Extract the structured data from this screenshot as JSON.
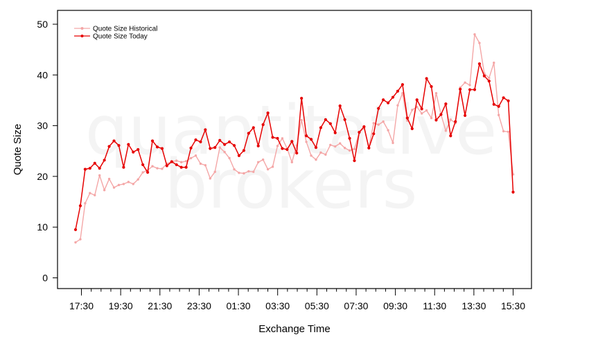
{
  "chart_data": {
    "type": "line",
    "title": "",
    "xlabel": "Exchange Time",
    "ylabel": "Quote Size",
    "ylim": [
      0,
      50
    ],
    "yticks": [
      0,
      10,
      20,
      30,
      40,
      50
    ],
    "xtick_labels": [
      "17:30",
      "19:30",
      "21:30",
      "23:30",
      "01:30",
      "03:30",
      "05:30",
      "07:30",
      "09:30",
      "11:30",
      "13:30",
      "15:30"
    ],
    "grid": false,
    "legend": "top-left",
    "watermark": [
      "quantitative",
      "brokers"
    ],
    "series": [
      {
        "name": "Quote Size Historical",
        "color": "#f4a6a6",
        "values": [
          7.0,
          7.6,
          14.7,
          16.7,
          16.3,
          20.2,
          17.3,
          19.5,
          17.8,
          18.3,
          18.5,
          18.9,
          18.5,
          19.4,
          20.8,
          21.2,
          22.0,
          21.6,
          21.5,
          22.5,
          22.9,
          23.1,
          22.8,
          23.0,
          23.6,
          24.1,
          22.5,
          22.2,
          19.6,
          20.9,
          25.7,
          24.8,
          23.6,
          21.4,
          20.7,
          20.6,
          21.0,
          20.9,
          22.8,
          23.3,
          21.4,
          21.9,
          26.0,
          27.5,
          25.5,
          22.8,
          26.1,
          31.1,
          26.8,
          24.1,
          23.3,
          24.7,
          24.3,
          26.2,
          25.9,
          26.5,
          25.6,
          25.1,
          25.4,
          28.7,
          29.5,
          25.7,
          30.5,
          30.2,
          30.8,
          29.1,
          26.6,
          34.0,
          36.4,
          31.0,
          33.1,
          33.7,
          32.4,
          33.0,
          31.5,
          36.4,
          32.2,
          29.0,
          31.2,
          30.5,
          37.5,
          38.5,
          38.0,
          48.0,
          46.3,
          40.3,
          39.4,
          42.4,
          32.1,
          28.9,
          28.8,
          20.4
        ]
      },
      {
        "name": "Quote Size Today",
        "color": "#e60000",
        "values": [
          9.5,
          14.2,
          21.4,
          21.6,
          22.6,
          21.6,
          23.2,
          25.9,
          27.0,
          26.1,
          21.8,
          26.3,
          24.8,
          25.3,
          22.3,
          20.8,
          27.0,
          25.8,
          25.5,
          22.1,
          22.9,
          22.3,
          21.8,
          21.8,
          25.6,
          27.2,
          26.8,
          29.2,
          25.5,
          25.7,
          27.1,
          26.3,
          26.8,
          26.1,
          24.1,
          25.1,
          28.5,
          29.6,
          26.0,
          30.2,
          32.5,
          27.7,
          27.5,
          25.5,
          25.3,
          26.9,
          24.6,
          35.4,
          28.0,
          27.3,
          25.7,
          29.6,
          31.2,
          30.4,
          28.6,
          33.9,
          31.2,
          27.5,
          23.1,
          28.7,
          29.8,
          25.6,
          28.4,
          33.4,
          35.1,
          34.5,
          35.6,
          36.8,
          38.1,
          31.5,
          29.4,
          35.1,
          33.3,
          39.3,
          37.7,
          31.1,
          32.2,
          34.3,
          28.0,
          30.8,
          37.2,
          32.0,
          37.1,
          37.1,
          42.2,
          39.8,
          38.8,
          34.2,
          33.8,
          35.5,
          34.9,
          16.9
        ]
      }
    ]
  }
}
